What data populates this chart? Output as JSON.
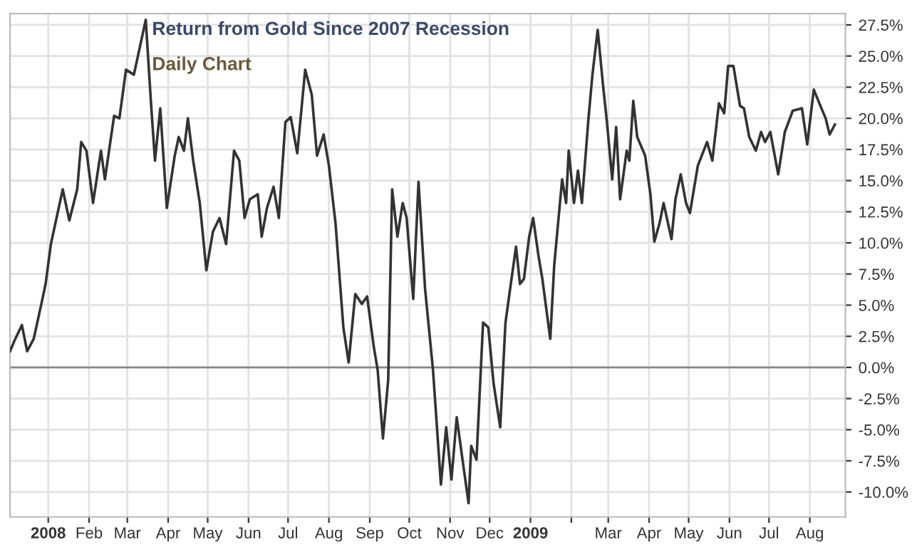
{
  "chart_data": {
    "type": "line",
    "title": "Return from Gold Since 2007 Recession",
    "subtitle": "Daily Chart",
    "x": [
      "2007-12-03",
      "2007-12-07",
      "2007-12-12",
      "2007-12-16",
      "2007-12-21",
      "2007-12-27",
      "2007-12-30",
      "2008-01-03",
      "2008-01-12",
      "2008-01-17",
      "2008-01-23",
      "2008-01-26",
      "2008-01-30",
      "2008-02-04",
      "2008-02-10",
      "2008-02-13",
      "2008-02-20",
      "2008-02-24",
      "2008-02-29",
      "2008-03-06",
      "2008-03-15",
      "2008-03-19",
      "2008-03-22",
      "2008-03-26",
      "2008-03-31",
      "2008-04-06",
      "2008-04-09",
      "2008-04-13",
      "2008-04-16",
      "2008-04-20",
      "2008-04-25",
      "2008-04-30",
      "2008-05-05",
      "2008-05-10",
      "2008-05-15",
      "2008-05-21",
      "2008-05-25",
      "2008-05-29",
      "2008-06-02",
      "2008-06-08",
      "2008-06-11",
      "2008-06-15",
      "2008-06-20",
      "2008-06-24",
      "2008-06-29",
      "2008-07-03",
      "2008-07-08",
      "2008-07-14",
      "2008-07-19",
      "2008-07-23",
      "2008-07-28",
      "2008-08-01",
      "2008-08-06",
      "2008-08-12",
      "2008-08-16",
      "2008-08-21",
      "2008-08-26",
      "2008-08-30",
      "2008-09-04",
      "2008-09-07",
      "2008-09-11",
      "2008-09-15",
      "2008-09-18",
      "2008-09-22",
      "2008-09-26",
      "2008-09-29",
      "2008-10-04",
      "2008-10-08",
      "2008-10-13",
      "2008-10-19",
      "2008-10-25",
      "2008-10-29",
      "2008-11-02",
      "2008-11-06",
      "2008-11-10",
      "2008-11-15",
      "2008-11-17",
      "2008-11-21",
      "2008-11-26",
      "2008-11-30",
      "2008-12-04",
      "2008-12-09",
      "2008-12-13",
      "2008-12-16",
      "2008-12-21",
      "2008-12-24",
      "2008-12-27",
      "2008-12-31",
      "2009-01-03",
      "2009-01-07",
      "2009-01-10",
      "2009-01-16",
      "2009-01-19",
      "2009-01-25",
      "2009-01-28",
      "2009-01-30",
      "2009-02-03",
      "2009-02-06",
      "2009-02-09",
      "2009-02-14",
      "2009-02-17",
      "2009-02-21",
      "2009-02-25",
      "2009-02-28",
      "2009-03-04",
      "2009-03-07",
      "2009-03-10",
      "2009-03-15",
      "2009-03-17",
      "2009-03-20",
      "2009-03-23",
      "2009-03-29",
      "2009-04-02",
      "2009-04-05",
      "2009-04-09",
      "2009-04-12",
      "2009-04-18",
      "2009-04-21",
      "2009-04-25",
      "2009-04-29",
      "2009-05-02",
      "2009-05-08",
      "2009-05-15",
      "2009-05-19",
      "2009-05-24",
      "2009-05-28",
      "2009-05-31",
      "2009-06-04",
      "2009-06-09",
      "2009-06-12",
      "2009-06-16",
      "2009-06-21",
      "2009-06-25",
      "2009-06-28",
      "2009-07-02",
      "2009-07-08",
      "2009-07-13",
      "2009-07-19",
      "2009-07-26",
      "2009-07-30",
      "2009-08-04",
      "2009-08-09",
      "2009-08-13",
      "2009-08-16",
      "2009-08-20"
    ],
    "series": [
      {
        "color": "#333333",
        "values": [
          1.3,
          2.3,
          3.4,
          1.3,
          2.3,
          5.2,
          6.7,
          9.9,
          14.3,
          11.8,
          14.3,
          18.1,
          17.4,
          13.2,
          17.4,
          15.1,
          20.2,
          20.0,
          23.9,
          23.5,
          27.9,
          21.2,
          16.6,
          20.8,
          12.8,
          17.0,
          18.5,
          17.4,
          20.0,
          16.6,
          13.2,
          7.8,
          10.9,
          12.0,
          9.9,
          17.4,
          16.6,
          12.0,
          13.5,
          13.9,
          10.5,
          12.8,
          14.5,
          12.0,
          19.7,
          20.1,
          17.2,
          23.9,
          21.9,
          17.0,
          18.7,
          16.2,
          11.6,
          3.2,
          0.4,
          5.9,
          5.1,
          5.7,
          1.7,
          -0.2,
          -5.7,
          -1.0,
          14.3,
          10.5,
          13.2,
          12.0,
          5.5,
          14.9,
          6.3,
          -0.2,
          -9.4,
          -4.8,
          -9.0,
          -4.0,
          -7.1,
          -10.9,
          -6.3,
          -7.4,
          3.6,
          3.2,
          -1.3,
          -4.8,
          3.6,
          5.9,
          9.7,
          6.7,
          7.1,
          10.5,
          12.0,
          9.0,
          7.1,
          2.3,
          8.2,
          15.1,
          13.2,
          17.4,
          13.2,
          15.8,
          13.2,
          20.0,
          23.5,
          27.1,
          22.7,
          19.7,
          15.1,
          19.3,
          13.5,
          17.4,
          16.6,
          21.4,
          18.5,
          17.0,
          13.9,
          10.1,
          11.6,
          13.2,
          10.3,
          13.5,
          15.5,
          13.2,
          12.4,
          16.2,
          18.1,
          16.6,
          21.2,
          20.4,
          24.2,
          24.2,
          21.0,
          20.8,
          18.5,
          17.4,
          18.9,
          18.1,
          18.9,
          15.5,
          18.9,
          20.6,
          20.8,
          17.9,
          22.3,
          21.0,
          20.0,
          18.7,
          19.5
        ]
      }
    ],
    "xlim": [
      "2007-12-03",
      "2009-08-28"
    ],
    "xticks": [
      {
        "value": "2008-01-01",
        "label": "2008"
      },
      {
        "value": "2008-02-01",
        "label": "Feb"
      },
      {
        "value": "2008-03-01",
        "label": "Mar"
      },
      {
        "value": "2008-04-01",
        "label": "Apr"
      },
      {
        "value": "2008-05-01",
        "label": "May"
      },
      {
        "value": "2008-06-01",
        "label": "Jun"
      },
      {
        "value": "2008-07-01",
        "label": "Jul"
      },
      {
        "value": "2008-08-01",
        "label": "Aug"
      },
      {
        "value": "2008-09-01",
        "label": "Sep"
      },
      {
        "value": "2008-10-01",
        "label": "Oct"
      },
      {
        "value": "2008-11-01",
        "label": "Nov"
      },
      {
        "value": "2008-12-01",
        "label": "Dec"
      },
      {
        "value": "2009-01-01",
        "label": "2009"
      },
      {
        "value": "2009-02-01",
        "label": null
      },
      {
        "value": "2009-03-01",
        "label": "Mar"
      },
      {
        "value": "2009-04-01",
        "label": "Apr"
      },
      {
        "value": "2009-05-01",
        "label": "May"
      },
      {
        "value": "2009-06-01",
        "label": "Jun"
      },
      {
        "value": "2009-07-01",
        "label": "Jul"
      },
      {
        "value": "2009-08-01",
        "label": "Aug"
      }
    ],
    "ylim": [
      -12,
      28.4
    ],
    "yticks": [
      {
        "value": -10,
        "label": "-10.0%"
      },
      {
        "value": -7.5,
        "label": "-7.5%"
      },
      {
        "value": -5,
        "label": "-5.0%"
      },
      {
        "value": -2.5,
        "label": "-2.5%"
      },
      {
        "value": 0,
        "label": "0.0%"
      },
      {
        "value": 2.5,
        "label": "2.5%"
      },
      {
        "value": 5,
        "label": "5.0%"
      },
      {
        "value": 7.5,
        "label": "7.5%"
      },
      {
        "value": 10,
        "label": "10.0%"
      },
      {
        "value": 12.5,
        "label": "12.5%"
      },
      {
        "value": 15,
        "label": "15.0%"
      },
      {
        "value": 17.5,
        "label": "17.5%"
      },
      {
        "value": 20,
        "label": "20.0%"
      },
      {
        "value": 22.5,
        "label": "22.5%"
      },
      {
        "value": 25,
        "label": "25.0%"
      },
      {
        "value": 27.5,
        "label": "27.5%"
      }
    ],
    "ref_lines": [
      {
        "axis": "y",
        "value": 0,
        "color": "#888888"
      }
    ],
    "grid": true,
    "line_style": "solid"
  }
}
